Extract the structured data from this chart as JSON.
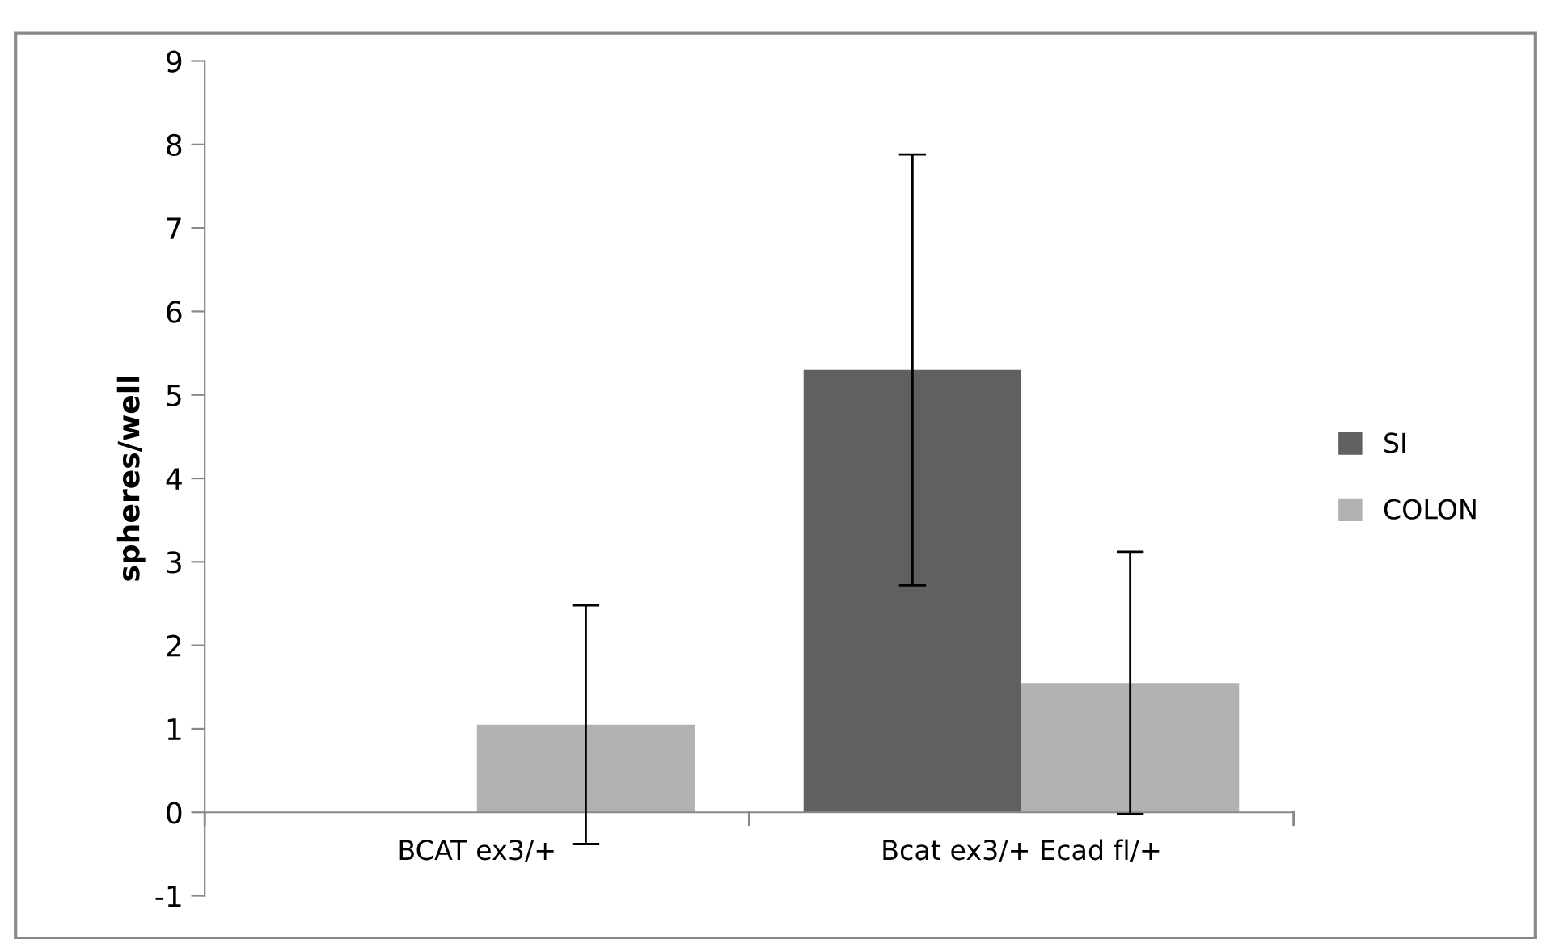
{
  "chart_data": {
    "type": "bar",
    "ylabel": "spheres/well",
    "categories": [
      "BCAT ex3/+",
      "Bcat ex3/+ Ecad fl/+"
    ],
    "series": [
      {
        "name": "SI",
        "color": "#606060",
        "values": [
          null,
          5.3
        ],
        "errors": [
          null,
          2.58
        ]
      },
      {
        "name": "COLON",
        "color": "#b2b2b2",
        "values": [
          1.05,
          1.55
        ],
        "errors": [
          1.43,
          1.57
        ]
      }
    ],
    "ylim": [
      -1,
      9
    ],
    "yticks": [
      -1,
      0,
      1,
      2,
      3,
      4,
      5,
      6,
      7,
      8,
      9
    ],
    "grid": false,
    "legend": "right"
  }
}
